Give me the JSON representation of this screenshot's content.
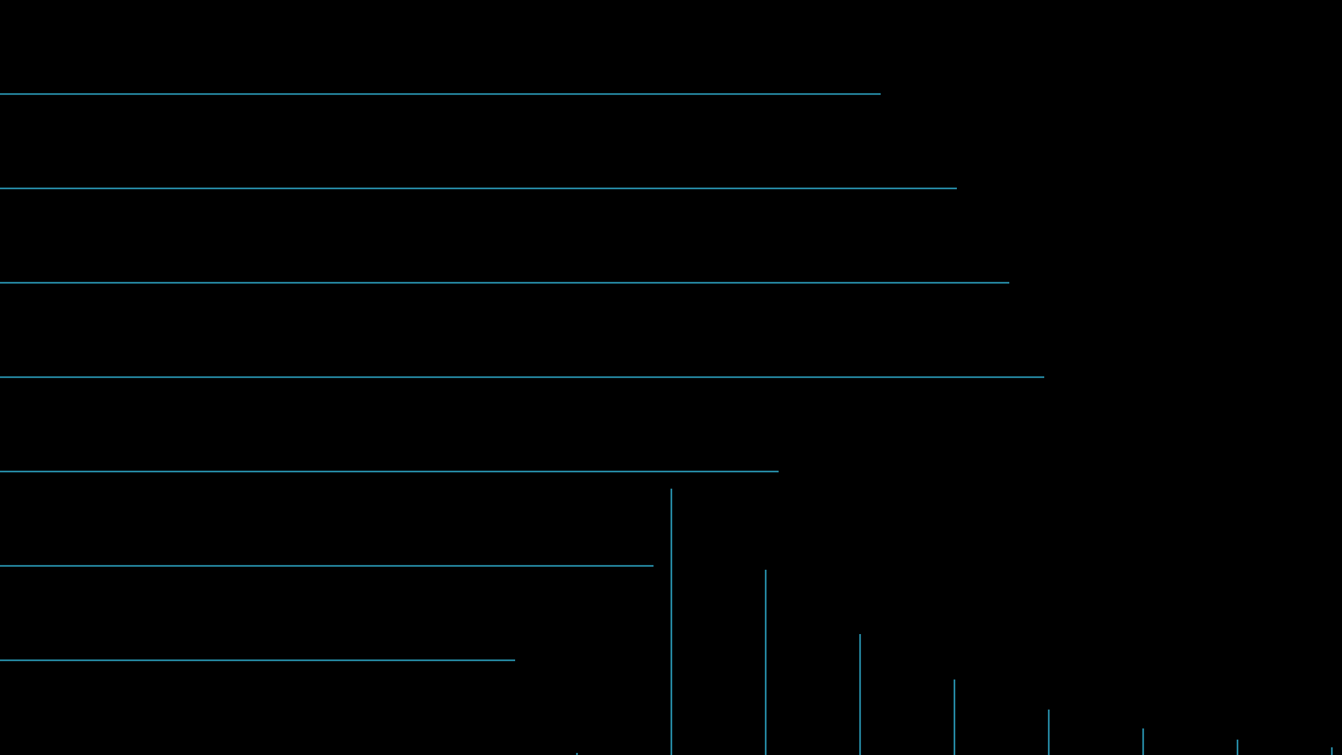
{
  "background_color": "#000000",
  "line_color": "#2ea8c8",
  "horizontal_lines": [
    {
      "id": "h-line-1",
      "length": 0.656
    },
    {
      "id": "h-line-2",
      "length": 0.713
    },
    {
      "id": "h-line-3",
      "length": 0.752
    },
    {
      "id": "h-line-4",
      "length": 0.778
    },
    {
      "id": "h-line-5",
      "length": 0.58
    },
    {
      "id": "h-line-6",
      "length": 0.487
    },
    {
      "id": "h-line-7",
      "length": 0.384
    }
  ],
  "vertical_lines": [
    {
      "id": "v-line-0",
      "height": 0.003
    },
    {
      "id": "v-line-1",
      "height": 0.353
    },
    {
      "id": "v-line-2",
      "height": 0.245
    },
    {
      "id": "v-line-3",
      "height": 0.16
    },
    {
      "id": "v-line-4",
      "height": 0.1
    },
    {
      "id": "v-line-5",
      "height": 0.06
    },
    {
      "id": "v-line-6",
      "height": 0.035
    },
    {
      "id": "v-line-7",
      "height": 0.02
    },
    {
      "id": "v-line-8",
      "height": 0.01
    }
  ]
}
